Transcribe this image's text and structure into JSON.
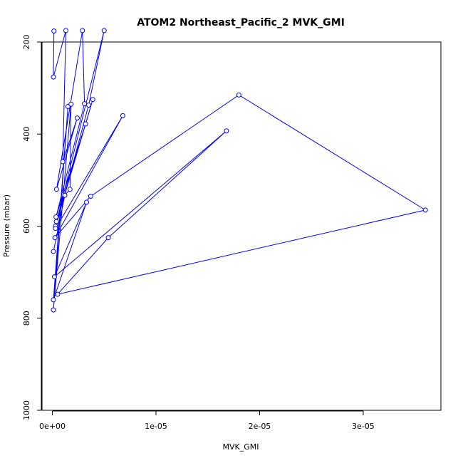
{
  "chart_data": {
    "type": "line",
    "title": "ATOM2 Northeast_Pacific_2 MVK_GMI",
    "xlabel": "MVK_GMI",
    "ylabel": "Pressure (mbar)",
    "xlim": [
      -1e-06,
      3.75e-05
    ],
    "ylim": [
      1000,
      200
    ],
    "x_ticks": [
      0,
      1e-05,
      2e-05,
      3e-05
    ],
    "x_tick_labels": [
      "0e+00",
      "1e-05",
      "2e-05",
      "3e-05"
    ],
    "y_ticks": [
      200,
      400,
      600,
      800,
      1000
    ],
    "y_tick_labels": [
      "200",
      "400",
      "600",
      "800",
      "1000"
    ],
    "series_color": "#0000ff",
    "series": [
      {
        "points": [
          [
            1.5e-07,
            176
          ],
          [
            1e-07,
            276
          ],
          [
            1.3e-06,
            175
          ],
          [
            1e-06,
            460
          ],
          [
            2.4e-06,
            365
          ],
          [
            4e-07,
            520
          ],
          [
            2.9e-06,
            175
          ],
          [
            3.1e-06,
            334
          ],
          [
            3.5e-07,
            580
          ],
          [
            3.2e-06,
            378
          ],
          [
            3.8e-07,
            590
          ],
          [
            3.9e-06,
            325
          ],
          [
            3e-07,
            600
          ],
          [
            5e-06,
            175
          ],
          [
            3.5e-06,
            337
          ],
          [
            3e-07,
            605
          ],
          [
            6.8e-06,
            360
          ],
          [
            2.5e-07,
            625
          ],
          [
            3.7e-06,
            535
          ],
          [
            1.8e-05,
            315
          ],
          [
            3.6e-05,
            565
          ],
          [
            5e-07,
            748
          ],
          [
            5.4e-06,
            625
          ],
          [
            1.68e-05,
            393
          ],
          [
            2e-07,
            710
          ],
          [
            3.3e-06,
            548
          ],
          [
            1e-07,
            760
          ],
          [
            1.5e-06,
            340
          ],
          [
            1e-07,
            782
          ],
          [
            1.8e-06,
            335
          ],
          [
            1.7e-06,
            520
          ],
          [
            1.2e-06,
            533
          ],
          [
            1e-07,
            655
          ]
        ]
      }
    ],
    "grid": false,
    "legend": "none"
  }
}
